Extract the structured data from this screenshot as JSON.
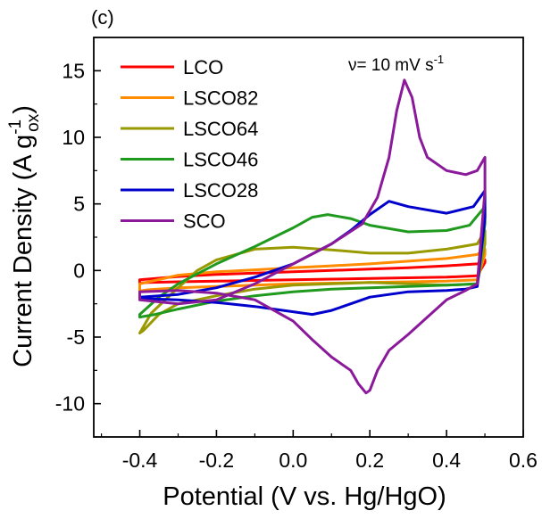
{
  "chart_data": {
    "type": "line",
    "panel_label": "(c)",
    "annotation": {
      "prefix": "ν= 10 mV s",
      "sup": "-1"
    },
    "xlabel": "Potential (V vs. Hg/HgO)",
    "ylabel": {
      "main": "Current Density (A g",
      "sup": "-1",
      "sub": "ox",
      "close": ")"
    },
    "xlim": [
      -0.52,
      0.6
    ],
    "ylim": [
      -12.5,
      17.5
    ],
    "xticks": [
      -0.4,
      -0.2,
      0.0,
      0.2,
      0.4,
      0.6
    ],
    "xtick_labels": [
      "-0.4",
      "-0.2",
      "0.0",
      "0.2",
      "0.4",
      "0.6"
    ],
    "yticks": [
      -10,
      -5,
      0,
      5,
      10,
      15
    ],
    "ytick_labels": [
      "-10",
      "-5",
      "0",
      "5",
      "10",
      "15"
    ],
    "grid": false,
    "legend_position": "top-left",
    "series": [
      {
        "name": "LCO",
        "color": "#ff0000",
        "x": [
          -0.4,
          -0.3,
          -0.2,
          -0.1,
          0.0,
          0.1,
          0.2,
          0.3,
          0.4,
          0.48,
          0.5,
          0.5,
          0.48,
          0.4,
          0.3,
          0.2,
          0.1,
          0.0,
          -0.1,
          -0.2,
          -0.3,
          -0.38,
          -0.4,
          -0.4
        ],
        "y": [
          -0.7,
          -0.45,
          -0.3,
          -0.2,
          -0.1,
          0.0,
          0.1,
          0.2,
          0.35,
          0.5,
          0.8,
          0.6,
          -0.4,
          -0.5,
          -0.55,
          -0.6,
          -0.65,
          -0.7,
          -0.75,
          -0.8,
          -0.85,
          -0.9,
          -0.95,
          -0.7
        ]
      },
      {
        "name": "LSCO82",
        "color": "#ff8c00",
        "x": [
          -0.4,
          -0.3,
          -0.2,
          -0.1,
          0.0,
          0.1,
          0.2,
          0.3,
          0.4,
          0.48,
          0.5,
          0.5,
          0.48,
          0.4,
          0.3,
          0.2,
          0.1,
          0.0,
          -0.1,
          -0.2,
          -0.3,
          -0.38,
          -0.4,
          -0.4
        ],
        "y": [
          -1.0,
          -0.35,
          -0.1,
          0.05,
          0.2,
          0.35,
          0.5,
          0.7,
          0.9,
          1.2,
          1.6,
          1.2,
          -0.7,
          -0.8,
          -0.85,
          -0.9,
          -0.95,
          -1.0,
          -1.1,
          -1.2,
          -1.3,
          -1.45,
          -1.55,
          -1.0
        ]
      },
      {
        "name": "LSCO64",
        "color": "#999900",
        "x": [
          -0.4,
          -0.37,
          -0.3,
          -0.25,
          -0.2,
          -0.1,
          0.0,
          0.1,
          0.2,
          0.3,
          0.4,
          0.48,
          0.5,
          0.5,
          0.48,
          0.4,
          0.3,
          0.2,
          0.1,
          0.0,
          -0.1,
          -0.2,
          -0.3,
          -0.35,
          -0.39,
          -0.4,
          -0.4
        ],
        "y": [
          -4.7,
          -3.2,
          -1.3,
          0.0,
          0.8,
          1.6,
          1.75,
          1.55,
          1.3,
          1.3,
          1.6,
          2.0,
          3.0,
          2.0,
          -1.0,
          -1.1,
          -1.0,
          -0.9,
          -1.0,
          -1.1,
          -1.4,
          -1.9,
          -2.5,
          -3.3,
          -4.5,
          -4.7,
          -4.7
        ]
      },
      {
        "name": "LSCO46",
        "color": "#1f9a1f",
        "x": [
          -0.4,
          -0.35,
          -0.3,
          -0.2,
          -0.1,
          0.0,
          0.05,
          0.09,
          0.15,
          0.2,
          0.3,
          0.4,
          0.46,
          0.5,
          0.5,
          0.48,
          0.4,
          0.3,
          0.2,
          0.1,
          0.0,
          -0.1,
          -0.2,
          -0.3,
          -0.36,
          -0.4,
          -0.4
        ],
        "y": [
          -3.3,
          -2.0,
          -1.0,
          0.5,
          1.8,
          3.2,
          4.0,
          4.2,
          3.9,
          3.4,
          2.9,
          3.0,
          3.4,
          4.8,
          3.5,
          -1.0,
          -1.1,
          -1.2,
          -1.3,
          -1.4,
          -1.6,
          -1.9,
          -2.3,
          -2.9,
          -3.3,
          -3.5,
          -3.3
        ]
      },
      {
        "name": "LSCO28",
        "color": "#0000cc",
        "x": [
          -0.4,
          -0.3,
          -0.2,
          -0.1,
          0.0,
          0.1,
          0.15,
          0.2,
          0.25,
          0.3,
          0.4,
          0.47,
          0.5,
          0.5,
          0.48,
          0.45,
          0.4,
          0.3,
          0.2,
          0.15,
          0.1,
          0.05,
          0.0,
          -0.1,
          -0.2,
          -0.3,
          -0.4,
          -0.4
        ],
        "y": [
          -2.0,
          -1.8,
          -1.3,
          -0.5,
          0.5,
          2.0,
          3.0,
          4.2,
          5.2,
          4.8,
          4.3,
          4.8,
          6.0,
          4.0,
          -1.2,
          -1.4,
          -1.5,
          -1.6,
          -2.0,
          -2.5,
          -3.0,
          -3.3,
          -3.1,
          -2.7,
          -2.4,
          -2.2,
          -2.1,
          -2.0
        ]
      },
      {
        "name": "SCO",
        "color": "#8b1a9b",
        "x": [
          -0.4,
          -0.3,
          -0.2,
          -0.1,
          0.0,
          0.1,
          0.18,
          0.22,
          0.25,
          0.27,
          0.29,
          0.31,
          0.33,
          0.35,
          0.4,
          0.45,
          0.48,
          0.5,
          0.5,
          0.48,
          0.45,
          0.4,
          0.35,
          0.3,
          0.25,
          0.22,
          0.2,
          0.19,
          0.17,
          0.15,
          0.1,
          0.05,
          0.0,
          -0.05,
          -0.1,
          -0.2,
          -0.3,
          -0.4,
          -0.4
        ],
        "y": [
          -2.2,
          -2.5,
          -2.2,
          -1.0,
          0.5,
          2.0,
          3.5,
          5.5,
          8.5,
          12.0,
          14.3,
          13.0,
          10.0,
          8.5,
          7.5,
          7.2,
          7.5,
          8.5,
          6.0,
          -1.0,
          -1.5,
          -2.2,
          -3.5,
          -4.8,
          -6.0,
          -7.5,
          -9.0,
          -9.2,
          -8.5,
          -7.5,
          -6.5,
          -5.2,
          -3.8,
          -3.0,
          -2.2,
          -1.7,
          -1.5,
          -1.6,
          -2.2
        ]
      }
    ]
  }
}
